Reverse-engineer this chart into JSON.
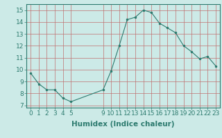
{
  "x": [
    0,
    1,
    2,
    3,
    4,
    5,
    9,
    10,
    11,
    12,
    13,
    14,
    15,
    16,
    17,
    18,
    19,
    20,
    21,
    22,
    23
  ],
  "y": [
    9.7,
    8.8,
    8.3,
    8.3,
    7.6,
    7.3,
    8.3,
    9.9,
    12.0,
    14.2,
    14.4,
    15.0,
    14.8,
    13.9,
    13.5,
    13.1,
    12.0,
    11.5,
    10.9,
    11.1,
    10.3
  ],
  "line_color": "#2d7b6f",
  "marker": ".",
  "marker_size": 3,
  "bg_color": "#cceae7",
  "grid_color": "#c07070",
  "xlabel": "Humidex (Indice chaleur)",
  "xlim": [
    -0.5,
    23.5
  ],
  "ylim": [
    6.8,
    15.5
  ],
  "yticks": [
    7,
    8,
    9,
    10,
    11,
    12,
    13,
    14,
    15
  ],
  "xticks": [
    0,
    1,
    2,
    3,
    4,
    5,
    9,
    10,
    11,
    12,
    13,
    14,
    15,
    16,
    17,
    18,
    19,
    20,
    21,
    22,
    23
  ],
  "xlabel_fontsize": 7.5,
  "tick_fontsize": 6.5
}
